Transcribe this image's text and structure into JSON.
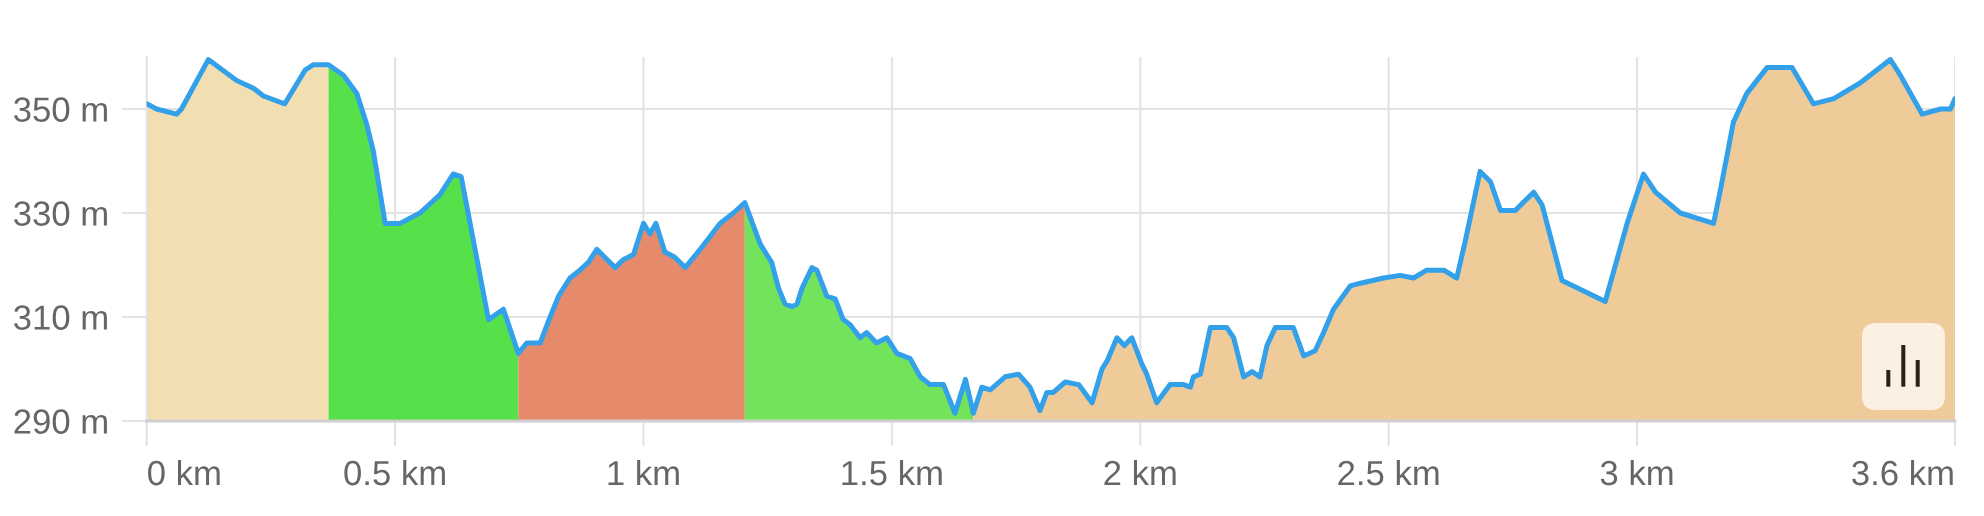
{
  "chart_data": {
    "type": "area",
    "xlim": [
      0,
      3.64
    ],
    "ylim": [
      290,
      360
    ],
    "xticks": [
      {
        "value": 0,
        "label": "0 km"
      },
      {
        "value": 0.5,
        "label": "0.5 km"
      },
      {
        "value": 1,
        "label": "1 km"
      },
      {
        "value": 1.5,
        "label": "1.5 km"
      },
      {
        "value": 2,
        "label": "2 km"
      },
      {
        "value": 2.5,
        "label": "2.5 km"
      },
      {
        "value": 3,
        "label": "3 km"
      },
      {
        "value": 3.64,
        "label": "3.6 km"
      }
    ],
    "yticks": [
      {
        "value": 290,
        "label": "290 m"
      },
      {
        "value": 310,
        "label": "310 m"
      },
      {
        "value": 330,
        "label": "330 m"
      },
      {
        "value": 350,
        "label": "350 m"
      }
    ],
    "grid": true,
    "marker": "none",
    "line_style": "solid",
    "series": [
      {
        "color": "#f1dfb2",
        "x": [
          0,
          0.02,
          0.06,
          0.07,
          0.124,
          0.181,
          0.215,
          0.235,
          0.278,
          0.319,
          0.335,
          0.366
        ],
        "values": [
          351,
          350,
          349,
          350,
          359.5,
          355.5,
          354,
          352.5,
          351,
          357.5,
          358.5,
          358.5
        ]
      },
      {
        "color": "#56e04a",
        "x": [
          0.366,
          0.396,
          0.423,
          0.443,
          0.456,
          0.48,
          0.51,
          0.55,
          0.59,
          0.617,
          0.633,
          0.688,
          0.718,
          0.748
        ],
        "values": [
          358.5,
          356.5,
          353,
          347,
          342,
          328,
          328,
          330,
          333.5,
          337.5,
          337,
          309.5,
          311.5,
          303
        ]
      },
      {
        "color": "#e58b6b",
        "x": [
          0.748,
          0.765,
          0.792,
          0.812,
          0.829,
          0.852,
          0.872,
          0.889,
          0.906,
          0.943,
          0.959,
          0.98,
          1.0,
          1.013,
          1.025,
          1.043,
          1.063,
          1.084,
          1.114,
          1.154,
          1.181,
          1.204
        ],
        "values": [
          303,
          305,
          305,
          310,
          314,
          317.5,
          319,
          320.5,
          323,
          319.5,
          321,
          322,
          328,
          326,
          328,
          322.5,
          321.5,
          319.5,
          323,
          328,
          330,
          332
        ]
      },
      {
        "color": "#73e35b",
        "x": [
          1.204,
          1.235,
          1.258,
          1.272,
          1.285,
          1.299,
          1.309,
          1.319,
          1.339,
          1.349,
          1.369,
          1.386,
          1.402,
          1.416,
          1.436,
          1.449,
          1.469,
          1.49,
          1.51,
          1.537,
          1.557,
          1.577,
          1.604,
          1.627,
          1.648,
          1.664
        ],
        "values": [
          332,
          324,
          320.5,
          315.5,
          312.5,
          312,
          312.5,
          315.5,
          319.5,
          319,
          314,
          313.5,
          309.5,
          308.5,
          306,
          307,
          305,
          306,
          303,
          302,
          298.5,
          297,
          297,
          291.5,
          298,
          291.5
        ]
      },
      {
        "color": "#eecb99",
        "x": [
          1.664,
          1.681,
          1.698,
          1.728,
          1.755,
          1.778,
          1.798,
          1.812,
          1.825,
          1.849,
          1.876,
          1.903,
          1.923,
          1.933,
          1.953,
          1.968,
          1.983,
          2.003,
          2.013,
          2.033,
          2.06,
          2.087,
          2.101,
          2.107,
          2.121,
          2.141,
          2.174,
          2.188,
          2.208,
          2.225,
          2.241,
          2.255,
          2.272,
          2.308,
          2.329,
          2.352,
          2.369,
          2.389,
          2.423,
          2.443,
          2.49,
          2.523,
          2.55,
          2.577,
          2.611,
          2.637,
          2.654,
          2.684,
          2.705,
          2.725,
          2.755,
          2.792,
          2.809,
          2.849,
          2.936,
          2.98,
          3.013,
          3.037,
          3.087,
          3.154,
          3.168,
          3.194,
          3.221,
          3.262,
          3.312,
          3.355,
          3.396,
          3.449,
          3.51,
          3.53,
          3.574,
          3.611,
          3.631,
          3.64
        ],
        "values": [
          291.5,
          296.5,
          296,
          298.5,
          299,
          296.5,
          292,
          295.5,
          295.5,
          297.5,
          297,
          293.5,
          300,
          301.5,
          306,
          304.5,
          306,
          301,
          299,
          293.5,
          297,
          297,
          296.5,
          298.5,
          299,
          308,
          308,
          306,
          298.5,
          299.5,
          298.5,
          304.5,
          308,
          308,
          302.5,
          303.5,
          307,
          311.5,
          316,
          316.5,
          317.5,
          318,
          317.5,
          319,
          319,
          317.5,
          324.5,
          338,
          336,
          330.5,
          330.5,
          334,
          331.5,
          317,
          313,
          328,
          337.5,
          334,
          330,
          328,
          334.5,
          347.5,
          353,
          358,
          358,
          351,
          352,
          355,
          359.5,
          356.5,
          349,
          350,
          350,
          352
        ]
      },
      {
        "type": "line",
        "color": "#33a0ea",
        "x": [
          0,
          0.02,
          0.06,
          0.07,
          0.124,
          0.181,
          0.215,
          0.235,
          0.278,
          0.319,
          0.335,
          0.366,
          0.396,
          0.423,
          0.443,
          0.456,
          0.48,
          0.51,
          0.55,
          0.59,
          0.617,
          0.633,
          0.688,
          0.718,
          0.748,
          0.765,
          0.792,
          0.812,
          0.829,
          0.852,
          0.872,
          0.889,
          0.906,
          0.943,
          0.959,
          0.98,
          1.0,
          1.013,
          1.025,
          1.043,
          1.063,
          1.084,
          1.114,
          1.154,
          1.181,
          1.204,
          1.235,
          1.258,
          1.272,
          1.285,
          1.299,
          1.309,
          1.319,
          1.339,
          1.349,
          1.369,
          1.386,
          1.402,
          1.416,
          1.436,
          1.449,
          1.469,
          1.49,
          1.51,
          1.537,
          1.557,
          1.577,
          1.604,
          1.627,
          1.648,
          1.664,
          1.681,
          1.698,
          1.728,
          1.755,
          1.778,
          1.798,
          1.812,
          1.825,
          1.849,
          1.876,
          1.903,
          1.923,
          1.933,
          1.953,
          1.968,
          1.983,
          2.003,
          2.013,
          2.033,
          2.06,
          2.087,
          2.101,
          2.107,
          2.121,
          2.141,
          2.174,
          2.188,
          2.208,
          2.225,
          2.241,
          2.255,
          2.272,
          2.308,
          2.329,
          2.352,
          2.369,
          2.389,
          2.423,
          2.443,
          2.49,
          2.523,
          2.55,
          2.577,
          2.611,
          2.637,
          2.654,
          2.684,
          2.705,
          2.725,
          2.755,
          2.792,
          2.809,
          2.849,
          2.936,
          2.98,
          3.013,
          3.037,
          3.087,
          3.154,
          3.168,
          3.194,
          3.221,
          3.262,
          3.312,
          3.355,
          3.396,
          3.449,
          3.51,
          3.53,
          3.574,
          3.611,
          3.631,
          3.64
        ],
        "values": [
          351,
          350,
          349,
          350,
          359.5,
          355.5,
          354,
          352.5,
          351,
          357.5,
          358.5,
          358.5,
          356.5,
          353,
          347,
          342,
          328,
          328,
          330,
          333.5,
          337.5,
          337,
          309.5,
          311.5,
          303,
          305,
          305,
          310,
          314,
          317.5,
          319,
          320.5,
          323,
          319.5,
          321,
          322,
          328,
          326,
          328,
          322.5,
          321.5,
          319.5,
          323,
          328,
          330,
          332,
          324,
          320.5,
          315.5,
          312.5,
          312,
          312.5,
          315.5,
          319.5,
          319,
          314,
          313.5,
          309.5,
          308.5,
          306,
          307,
          305,
          306,
          303,
          302,
          298.5,
          297,
          297,
          291.5,
          298,
          291.5,
          296.5,
          296,
          298.5,
          299,
          296.5,
          292,
          295.5,
          295.5,
          297.5,
          297,
          293.5,
          300,
          301.5,
          306,
          304.5,
          306,
          301,
          299,
          293.5,
          297,
          297,
          296.5,
          298.5,
          299,
          308,
          308,
          306,
          298.5,
          299.5,
          298.5,
          304.5,
          308,
          308,
          302.5,
          303.5,
          307,
          311.5,
          316,
          316.5,
          317.5,
          318,
          317.5,
          319,
          319,
          317.5,
          324.5,
          338,
          336,
          330.5,
          330.5,
          334,
          331.5,
          317,
          313,
          328,
          337.5,
          334,
          330,
          328,
          334.5,
          347.5,
          353,
          358,
          358,
          351,
          352,
          355,
          359.5,
          356.5,
          349,
          350,
          350,
          352
        ]
      }
    ]
  }
}
